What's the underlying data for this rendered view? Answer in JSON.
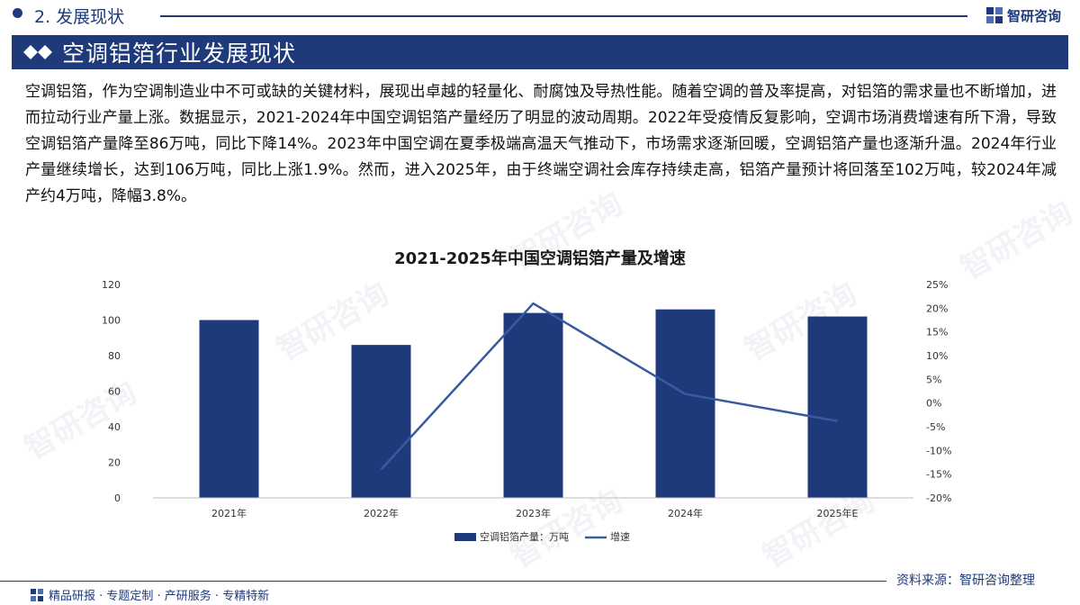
{
  "header": {
    "section": "2. 发展现状",
    "brand": "智研咨询"
  },
  "title": "空调铝箔行业发展现状",
  "paragraph": "空调铝箔，作为空调制造业中不可或缺的关键材料，展现出卓越的轻量化、耐腐蚀及导热性能。随着空调的普及率提高，对铝箔的需求量也不断增加，进而拉动行业产量上涨。数据显示，2021-2024年中国空调铝箔产量经历了明显的波动周期。2022年受疫情反复影响，空调市场消费增速有所下滑，导致空调铝箔产量降至86万吨，同比下降14%。2023年中国空调在夏季极端高温天气推动下，市场需求逐渐回暖，空调铝箔产量也逐渐升温。2024年行业产量继续增长，达到106万吨，同比上涨1.9%。然而，进入2025年，由于终端空调社会库存持续走高，铝箔产量预计将回落至102万吨，较2024年减产约4万吨，降幅3.8%。",
  "watermark": "智研咨询",
  "chart_data": {
    "type": "bar",
    "title": "2021-2025年中国空调铝箔产量及增速",
    "categories": [
      "2021年",
      "2022年",
      "2023年",
      "2024年",
      "2025年E"
    ],
    "series": [
      {
        "name": "空调铝箔产量：万吨",
        "kind": "bar",
        "axis": "left",
        "values": [
          100,
          86,
          104,
          106,
          102
        ],
        "color": "#1f3a7a"
      },
      {
        "name": "增速",
        "kind": "line",
        "axis": "right",
        "values": [
          null,
          -14,
          21,
          1.9,
          -3.8
        ],
        "color": "#3a5aa0"
      }
    ],
    "y_left": {
      "min": 0,
      "max": 120,
      "ticks": [
        "0",
        "20",
        "40",
        "60",
        "80",
        "100",
        "120"
      ]
    },
    "y_right": {
      "min": -20,
      "max": 25,
      "ticks": [
        "-20%",
        "-15%",
        "-10%",
        "-5%",
        "0%",
        "5%",
        "10%",
        "15%",
        "20%",
        "25%"
      ]
    },
    "grid": false,
    "legend_position": "bottom"
  },
  "source": "资料来源：智研咨询整理",
  "footer": "精品研报 · 专题定制 · 产研服务 · 专精特新"
}
